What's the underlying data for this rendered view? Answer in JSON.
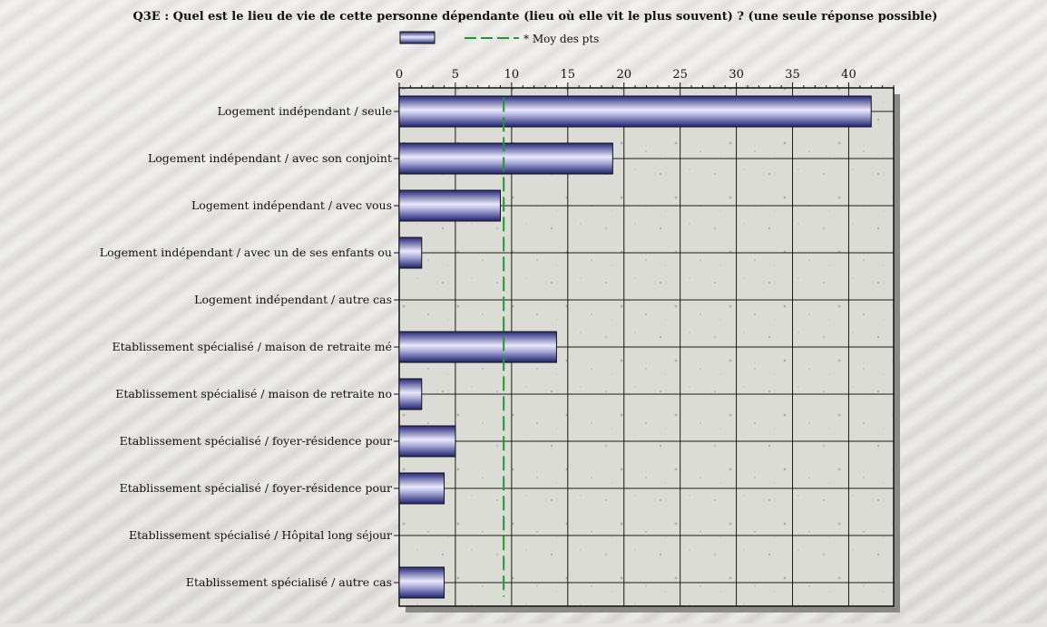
{
  "chart_data": {
    "type": "bar",
    "orientation": "horizontal",
    "title": "Q3E : Quel est le lieu de vie de cette personne dépendante (lieu où elle vit le plus souvent) ? (une seule réponse possible)",
    "legend": {
      "placement": "top",
      "average_label": "* Moy des pts"
    },
    "categories": [
      "Logement indépendant / seule",
      "Logement indépendant / avec son conjoint",
      "Logement indépendant / avec vous",
      "Logement indépendant / avec un de ses enfants ou",
      "Logement indépendant / autre cas",
      "Etablissement spécialisé / maison de retraite mé",
      "Etablissement spécialisé / maison de retraite no",
      "Etablissement spécialisé / foyer-résidence pour",
      "Etablissement spécialisé / foyer-résidence pour ",
      "Etablissement spécialisé / Hôpital long séjour",
      "Etablissement spécialisé / autre cas"
    ],
    "values": [
      42,
      19,
      9,
      2,
      0,
      14,
      2,
      5,
      4,
      0,
      4
    ],
    "average": 9.3,
    "xlim": [
      0,
      44
    ],
    "xticks": [
      0,
      5,
      10,
      15,
      20,
      25,
      30,
      35,
      40
    ],
    "grid": true,
    "colors": {
      "bar": "#2e2e8c",
      "bar_light": "#e6e6f6",
      "average_line": "#1f9a2f",
      "grid": "#1a1a1a",
      "plot_bg": "#dcdcd7"
    }
  }
}
